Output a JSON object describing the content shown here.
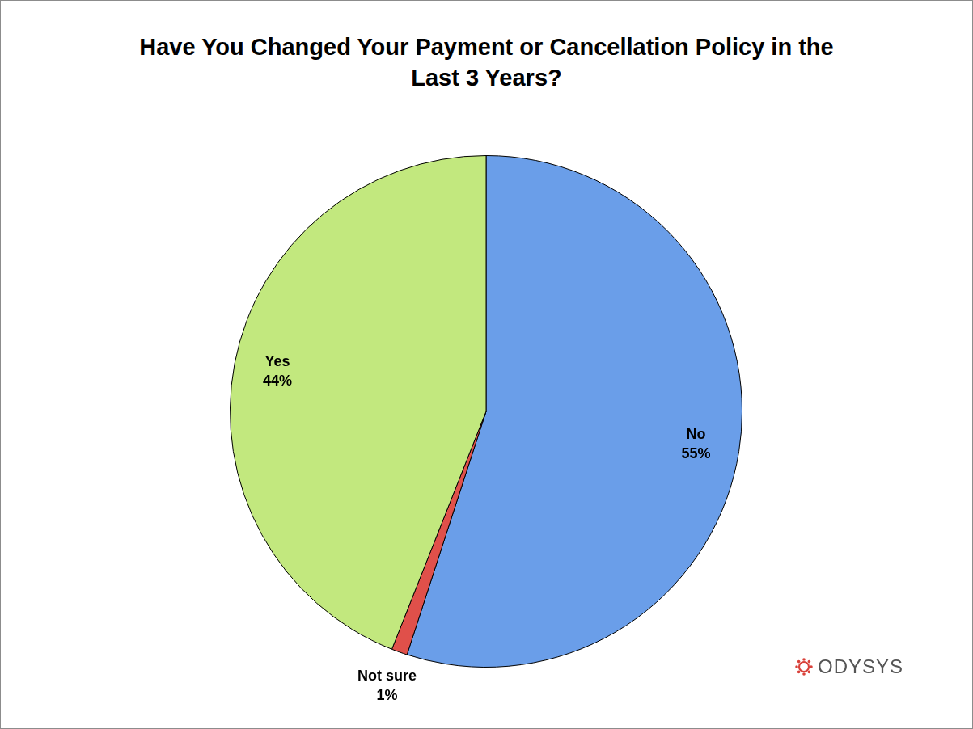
{
  "chart_data": {
    "type": "pie",
    "title": "Have You Changed Your Payment or Cancellation Policy in the Last 3 Years?",
    "categories": [
      "No",
      "Not sure",
      "Yes"
    ],
    "values": [
      55,
      1,
      44
    ],
    "value_labels": [
      "55%",
      "1%",
      "44%"
    ],
    "colors": [
      "#6a9ee9",
      "#e0504a",
      "#c2e87e"
    ],
    "data_labels": true,
    "legend": false,
    "annotations": [
      "ODYSYS"
    ]
  }
}
